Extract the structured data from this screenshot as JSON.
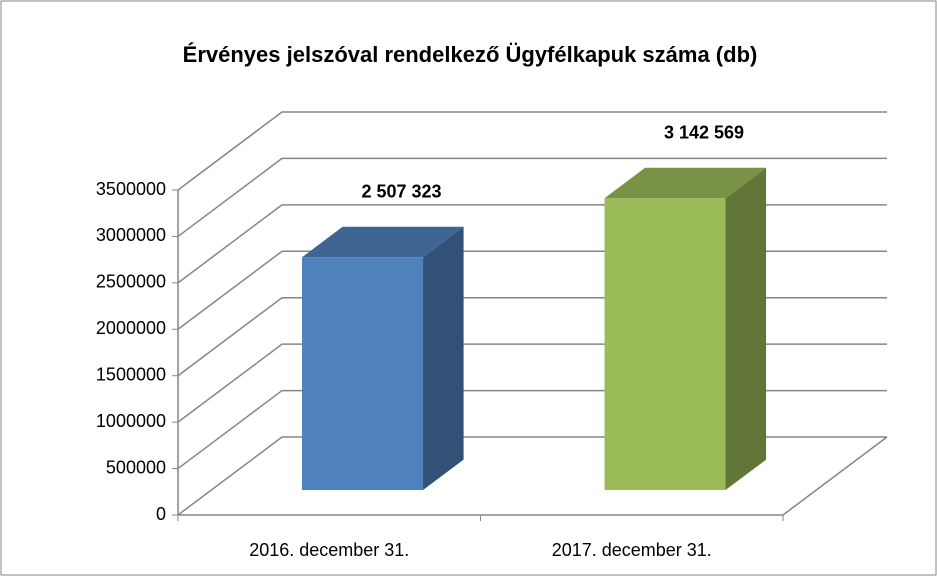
{
  "chart_data": {
    "type": "bar3d",
    "title": "Érvényes jelszóval rendelkező Ügyfélkapuk száma (db)",
    "categories": [
      "2016. december 31.",
      "2017. december 31."
    ],
    "values": [
      2507323,
      3142569
    ],
    "value_labels": [
      "2 507 323",
      "3 142 569"
    ],
    "colors": [
      "#4f81bd",
      "#9bbb59"
    ],
    "ylim": [
      0,
      3500000
    ],
    "yticks": [
      0,
      500000,
      1000000,
      1500000,
      2000000,
      2500000,
      3000000,
      3500000
    ],
    "grid": true
  }
}
